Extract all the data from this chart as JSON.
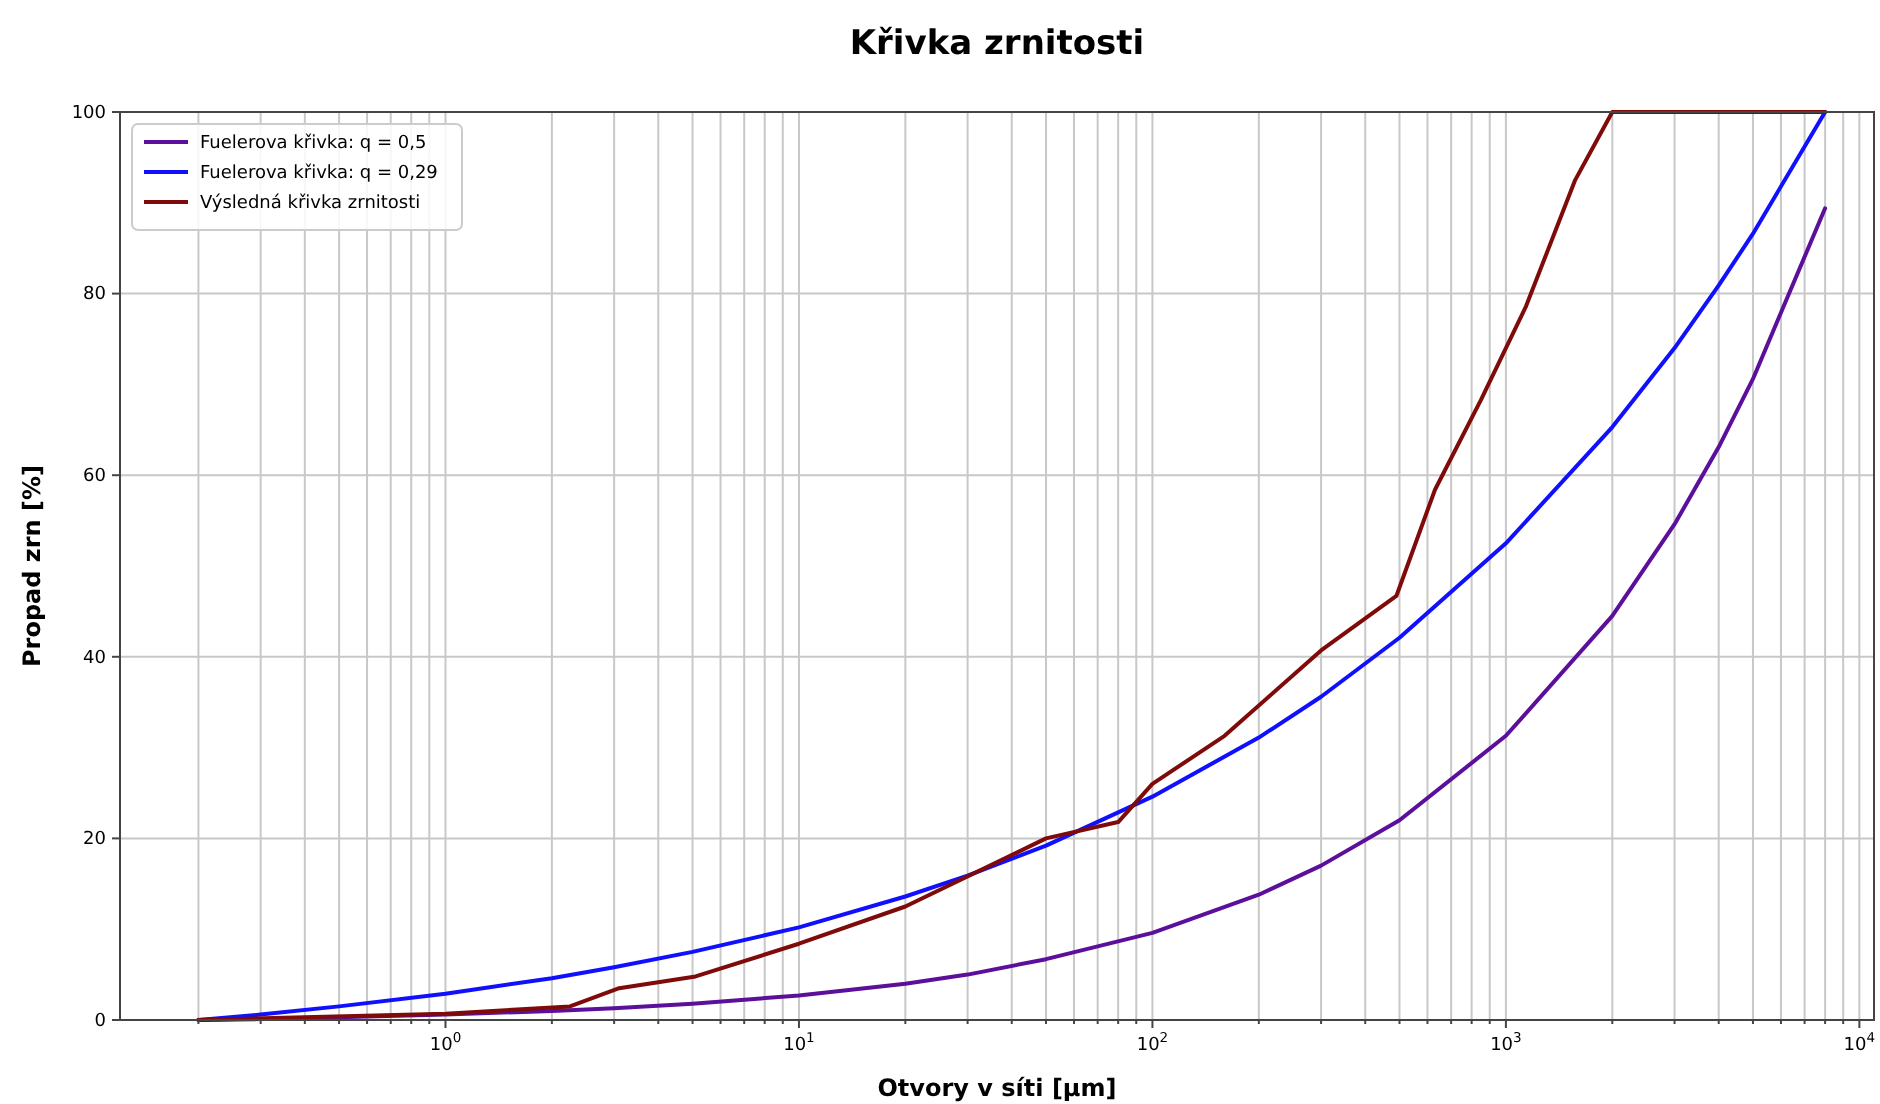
{
  "chart_data": {
    "type": "line",
    "title": "Křivka zrnitosti",
    "xlabel": "Otvory v síti [µm]",
    "ylabel": "Propad zrn [%]",
    "log": "x",
    "grid": true,
    "legend": "top left",
    "line_style": "solid",
    "marker": "none",
    "xlim": [
      0.12,
      11000
    ],
    "ylim": [
      0,
      100
    ],
    "yticks": [
      0,
      20,
      40,
      60,
      80,
      100
    ],
    "xticks": [
      {
        "value": 0.2,
        "label": null
      },
      {
        "value": 0.3,
        "label": null
      },
      {
        "value": 0.4,
        "label": null
      },
      {
        "value": 0.5,
        "label": null
      },
      {
        "value": 0.6,
        "label": null
      },
      {
        "value": 0.7,
        "label": null
      },
      {
        "value": 0.8,
        "label": null
      },
      {
        "value": 0.9,
        "label": null
      },
      {
        "value": 1,
        "label": "10$^{0}$"
      },
      {
        "value": 2,
        "label": null
      },
      {
        "value": 3,
        "label": null
      },
      {
        "value": 4,
        "label": null
      },
      {
        "value": 5,
        "label": null
      },
      {
        "value": 6,
        "label": null
      },
      {
        "value": 7,
        "label": null
      },
      {
        "value": 8,
        "label": null
      },
      {
        "value": 9,
        "label": null
      },
      {
        "value": 10,
        "label": "10$^{1}$"
      },
      {
        "value": 20,
        "label": null
      },
      {
        "value": 30,
        "label": null
      },
      {
        "value": 40,
        "label": null
      },
      {
        "value": 50,
        "label": null
      },
      {
        "value": 60,
        "label": null
      },
      {
        "value": 70,
        "label": null
      },
      {
        "value": 80,
        "label": null
      },
      {
        "value": 90,
        "label": null
      },
      {
        "value": 100,
        "label": "10$^{2}$"
      },
      {
        "value": 200,
        "label": null
      },
      {
        "value": 300,
        "label": null
      },
      {
        "value": 400,
        "label": null
      },
      {
        "value": 500,
        "label": null
      },
      {
        "value": 600,
        "label": null
      },
      {
        "value": 700,
        "label": null
      },
      {
        "value": 800,
        "label": null
      },
      {
        "value": 900,
        "label": null
      },
      {
        "value": 1000,
        "label": "10$^{3}$"
      },
      {
        "value": 2000,
        "label": null
      },
      {
        "value": 3000,
        "label": null
      },
      {
        "value": 4000,
        "label": null
      },
      {
        "value": 5000,
        "label": null
      },
      {
        "value": 6000,
        "label": null
      },
      {
        "value": 7000,
        "label": null
      },
      {
        "value": 8000,
        "label": null
      },
      {
        "value": 9000,
        "label": null
      },
      {
        "value": 10000,
        "label": "10$^{4}$"
      }
    ],
    "series": [
      {
        "name": "Fuelerova křivka: q = 0,5",
        "color": "#5b0f9a",
        "x": [
          0.2,
          0.3,
          0.5,
          1,
          2,
          3,
          5,
          10,
          20,
          30,
          50,
          100,
          200,
          300,
          500,
          1000,
          2000,
          3000,
          4000,
          5000,
          8000
        ],
        "values": [
          0,
          0.1,
          0.3,
          0.6,
          1,
          1.3,
          1.8,
          2.7,
          4,
          5,
          6.7,
          9.6,
          13.8,
          17,
          22,
          31.3,
          44.5,
          54.6,
          63.1,
          70.6,
          89.4
        ]
      },
      {
        "name": "Fuelerova křivka: q = 0,29",
        "color": "#1010ff",
        "x": [
          0.2,
          0.3,
          0.5,
          1,
          2,
          3,
          5,
          10,
          20,
          30,
          50,
          100,
          200,
          300,
          500,
          1000,
          2000,
          3000,
          4000,
          5000,
          8000
        ],
        "values": [
          0,
          0.6,
          1.5,
          2.9,
          4.6,
          5.8,
          7.5,
          10.2,
          13.6,
          15.9,
          19.2,
          24.6,
          31.1,
          35.6,
          42.1,
          52.5,
          65.3,
          74,
          80.9,
          86.6,
          100
        ]
      },
      {
        "name": "Výsledná křivka zrnitosti",
        "color": "#7f0a0a",
        "x": [
          0.2,
          1,
          2.25,
          3.1,
          5.1,
          10,
          20,
          50,
          80,
          100,
          160,
          300,
          490,
          630,
          850,
          1140,
          1570,
          2000,
          8000
        ],
        "values": [
          0,
          0.7,
          1.5,
          3.5,
          4.8,
          8.4,
          12.5,
          20,
          21.8,
          26,
          31.3,
          40.7,
          46.7,
          58.4,
          68.3,
          78.6,
          92.5,
          100,
          100
        ]
      }
    ]
  }
}
